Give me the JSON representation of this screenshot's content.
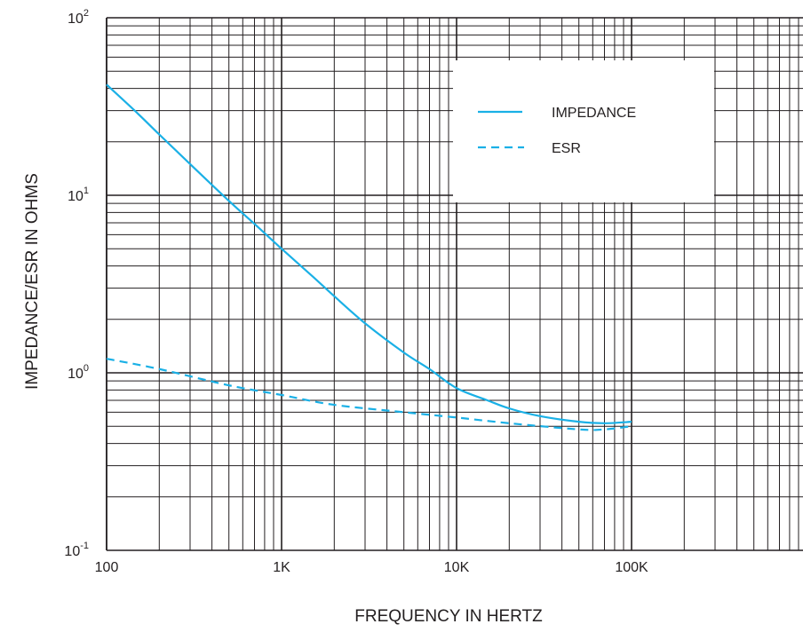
{
  "chart_data": {
    "type": "line",
    "xlabel": "FREQUENCY IN HERTZ",
    "ylabel": "IMPEDANCE/ESR IN OHMS",
    "x_scale": "log",
    "y_scale": "log",
    "xlim": [
      100,
      1000000
    ],
    "ylim": [
      0.1,
      100
    ],
    "x_ticks": [
      {
        "value": 100,
        "label": "100"
      },
      {
        "value": 1000,
        "label": "1K"
      },
      {
        "value": 10000,
        "label": "10K"
      },
      {
        "value": 100000,
        "label": "100K"
      }
    ],
    "y_ticks": [
      {
        "value": 0.1,
        "base": "10",
        "exp": "-1"
      },
      {
        "value": 1,
        "base": "10",
        "exp": "0"
      },
      {
        "value": 10,
        "base": "10",
        "exp": "1"
      },
      {
        "value": 100,
        "base": "10",
        "exp": "2"
      }
    ],
    "grid": true,
    "legend_position": "top-right",
    "series": [
      {
        "name": "IMPEDANCE",
        "style": "solid",
        "color": "#1ab0e6",
        "x": [
          100,
          150,
          200,
          300,
          500,
          700,
          1000,
          1500,
          2000,
          3000,
          5000,
          7000,
          10000,
          15000,
          20000,
          30000,
          50000,
          70000,
          100000
        ],
        "y": [
          42,
          29,
          22,
          15,
          9.3,
          6.9,
          5.0,
          3.5,
          2.7,
          1.9,
          1.3,
          1.05,
          0.82,
          0.7,
          0.63,
          0.57,
          0.53,
          0.52,
          0.53
        ]
      },
      {
        "name": "ESR",
        "style": "dashed",
        "color": "#1ab0e6",
        "x": [
          100,
          200,
          500,
          1000,
          2000,
          5000,
          10000,
          20000,
          50000,
          70000,
          100000
        ],
        "y": [
          1.2,
          1.05,
          0.85,
          0.75,
          0.66,
          0.6,
          0.56,
          0.52,
          0.48,
          0.48,
          0.5
        ]
      }
    ]
  }
}
